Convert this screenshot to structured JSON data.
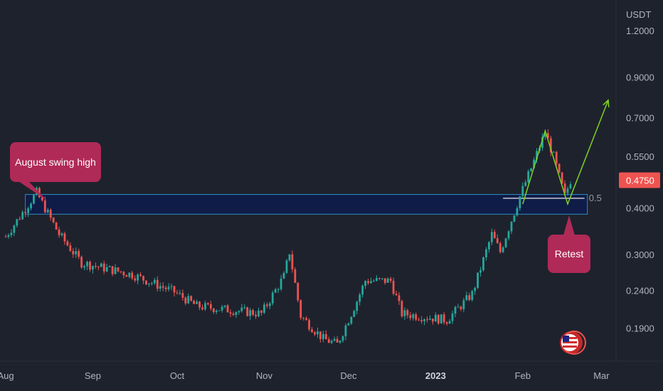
{
  "chart_data": {
    "type": "candlestick",
    "currency": "USDT",
    "y_scale": "log",
    "ylim": [
      0.155,
      1.45
    ],
    "y_ticks": [
      "1.2000",
      "0.9000",
      "0.7000",
      "0.5500",
      "0.4000",
      "0.3000",
      "0.2400",
      "0.1900"
    ],
    "x_ticks": [
      "Aug",
      "Sep",
      "Oct",
      "Nov",
      "Dec",
      "2023",
      "Feb",
      "Mar"
    ],
    "x_ticks_bold": [
      "2023"
    ],
    "last_price": "0.4750",
    "colors": {
      "background": "#1e222d",
      "up": "#26a69a",
      "down": "#ef5350",
      "zone_fill": "#0d1b4c",
      "zone_border": "#2b8ec0",
      "callout": "#b02a57",
      "last_price_tag": "#ef5350",
      "trend_arrow": "#7ed321",
      "fib_line": "#c7c9d1"
    },
    "support_zone": {
      "low": 0.385,
      "high": 0.435
    },
    "fib_level": {
      "label": "0.5",
      "price": 0.425
    },
    "annotations": {
      "swing_high": "August swing high",
      "retest": "Retest"
    },
    "path_prices": [
      0.41,
      0.645,
      0.41,
      0.78
    ],
    "anchors": [
      {
        "date": "Aug",
        "price": 0.335
      },
      {
        "date": "Aug 12",
        "price": 0.44
      },
      {
        "date": "Aug 20",
        "price": 0.34
      },
      {
        "date": "Aug 28",
        "price": 0.285
      },
      {
        "date": "Sep 15",
        "price": 0.265
      },
      {
        "date": "Sep 30",
        "price": 0.238
      },
      {
        "date": "Oct 8",
        "price": 0.218
      },
      {
        "date": "Oct 31",
        "price": 0.208
      },
      {
        "date": "Nov 8",
        "price": 0.262
      },
      {
        "date": "Nov 10",
        "price": 0.305
      },
      {
        "date": "Nov 14",
        "price": 0.205
      },
      {
        "date": "Nov 22",
        "price": 0.178
      },
      {
        "date": "Nov 27",
        "price": 0.172
      },
      {
        "date": "Dec 4",
        "price": 0.225
      },
      {
        "date": "Dec 7",
        "price": 0.255
      },
      {
        "date": "Dec 16",
        "price": 0.255
      },
      {
        "date": "Dec 20",
        "price": 0.208
      },
      {
        "date": "Jan 5",
        "price": 0.2
      },
      {
        "date": "Jan 14",
        "price": 0.235
      },
      {
        "date": "Jan 21",
        "price": 0.34
      },
      {
        "date": "Jan 24",
        "price": 0.305
      },
      {
        "date": "Jan 31",
        "price": 0.43
      },
      {
        "date": "Feb 3",
        "price": 0.49
      },
      {
        "date": "Feb 9",
        "price": 0.64
      },
      {
        "date": "Feb 12",
        "price": 0.55
      },
      {
        "date": "Feb 16",
        "price": 0.43
      },
      {
        "date": "Feb 18",
        "price": 0.475
      }
    ]
  }
}
